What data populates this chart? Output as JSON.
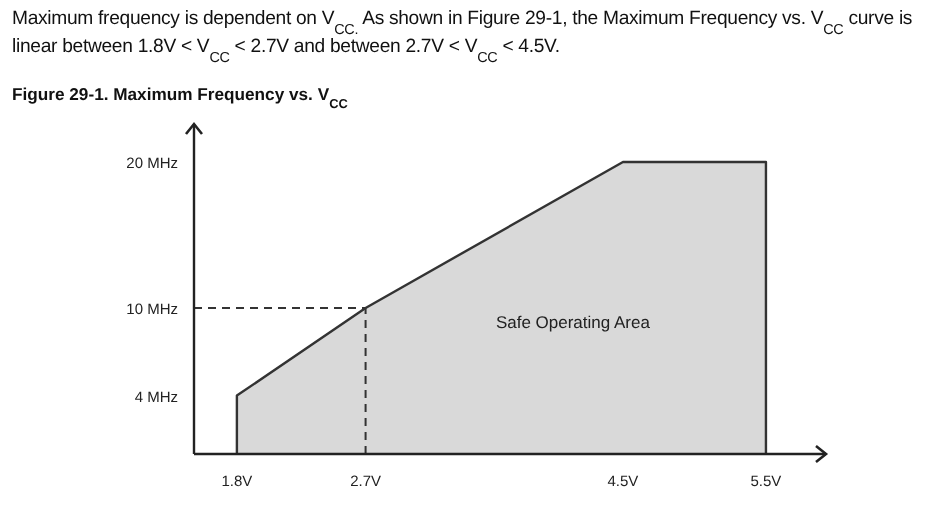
{
  "chart_data": {
    "type": "area",
    "title": "Figure 29-1.    Maximum Frequency vs. V$_{CC}$",
    "annotations": [
      "Maximum frequency is dependent on V$_{CC.}$ As shown in Figure 29-1, the Maximum Frequency vs. V$_{CC}$ curve is",
      "linear between 1.8V < V$_{CC}$ < 2.7V and between 2.7V < V$_{CC}$ < 4.5V.",
      "Safe Operating Area"
    ],
    "x": [
      1.8,
      2.7,
      4.5,
      5.5
    ],
    "series": [
      {
        "color": "#d9d9d9",
        "values": [
          4,
          10,
          20,
          20
        ]
      }
    ],
    "xlim": [
      1.5,
      5.92
    ],
    "ylim": [
      0,
      22.6
    ],
    "xticks": [
      {
        "value": 1.8,
        "label": "1.8V"
      },
      {
        "value": 2.7,
        "label": "2.7V"
      },
      {
        "value": 4.5,
        "label": "4.5V"
      },
      {
        "value": 5.5,
        "label": "5.5V"
      }
    ],
    "yticks": [
      {
        "value": 4,
        "label": "4 MHz"
      },
      {
        "value": 10,
        "label": "10 MHz"
      },
      {
        "value": 20,
        "label": "20 MHz"
      }
    ],
    "ref_lines": [
      {
        "axis": "y",
        "value": 10,
        "line_style": "dashed"
      },
      {
        "axis": "x",
        "value": 2.7,
        "line_style": "dashed"
      }
    ]
  }
}
